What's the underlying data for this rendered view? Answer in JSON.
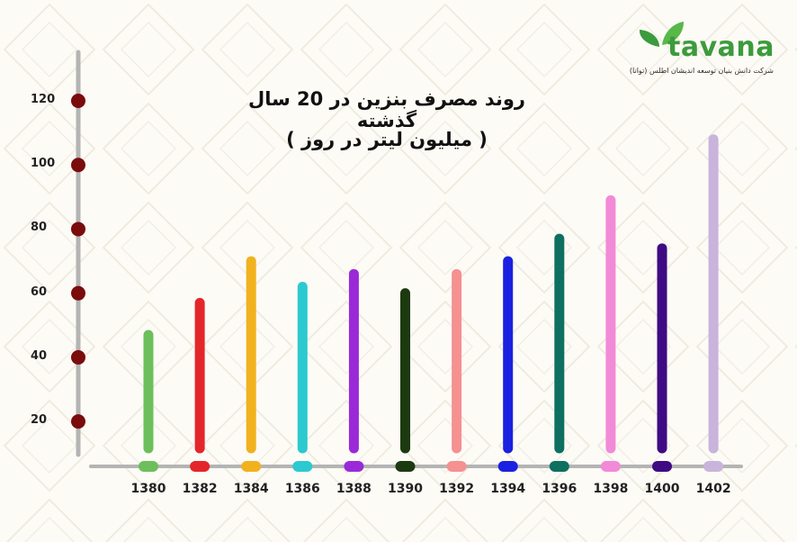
{
  "brand": {
    "name": "tavana",
    "tagline": "شرکت دانش بنیان توسعه اندیشان اطلس (توانا)",
    "leaf_color": "#3c9b3c"
  },
  "chart_data": {
    "type": "bar",
    "title": "روند مصرف بنزین در 20 سال گذشته",
    "subtitle": "( میلیون لیتر در روز )",
    "xlabel": "",
    "ylabel": "",
    "categories": [
      "1380",
      "1382",
      "1384",
      "1386",
      "1388",
      "1390",
      "1392",
      "1394",
      "1396",
      "1398",
      "1400",
      "1402"
    ],
    "values": [
      47,
      57,
      70,
      62,
      66,
      60,
      66,
      70,
      77,
      89,
      74,
      108
    ],
    "colors": [
      "#6cbf5a",
      "#e4262a",
      "#f1b21e",
      "#2cc9d0",
      "#9a2ad8",
      "#1c3a10",
      "#f59191",
      "#1a21e0",
      "#0d7060",
      "#f28ad8",
      "#3e0b82",
      "#c9b4db"
    ],
    "yticks": [
      "20",
      "40",
      "60",
      "80",
      "100",
      "120"
    ],
    "ylim": [
      6,
      128
    ],
    "grid": false,
    "legend": "none"
  }
}
